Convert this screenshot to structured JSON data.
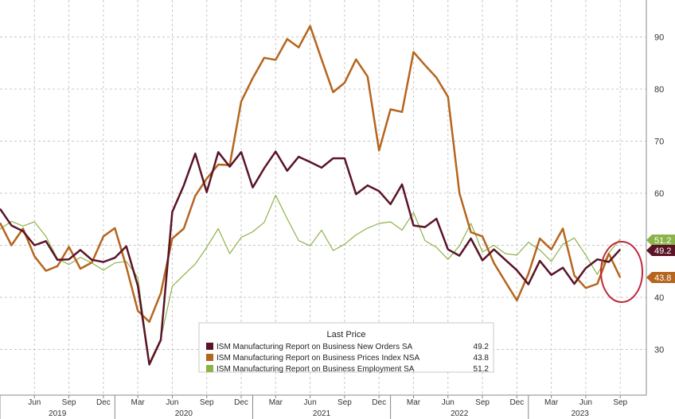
{
  "chart_data": {
    "type": "line",
    "x": [
      "2019-03",
      "2019-04",
      "2019-05",
      "2019-06",
      "2019-07",
      "2019-08",
      "2019-09",
      "2019-10",
      "2019-11",
      "2019-12",
      "2020-01",
      "2020-02",
      "2020-03",
      "2020-04",
      "2020-05",
      "2020-06",
      "2020-07",
      "2020-08",
      "2020-09",
      "2020-10",
      "2020-11",
      "2020-12",
      "2021-01",
      "2021-02",
      "2021-03",
      "2021-04",
      "2021-05",
      "2021-06",
      "2021-07",
      "2021-08",
      "2021-09",
      "2021-10",
      "2021-11",
      "2021-12",
      "2022-01",
      "2022-02",
      "2022-03",
      "2022-04",
      "2022-05",
      "2022-06",
      "2022-07",
      "2022-08",
      "2022-09",
      "2022-10",
      "2022-11",
      "2022-12",
      "2023-01",
      "2023-02",
      "2023-03",
      "2023-04",
      "2023-05",
      "2023-06",
      "2023-07",
      "2023-08",
      "2023-09"
    ],
    "series": [
      {
        "name": "ISM Manufacturing Report on Business New Orders SA",
        "color": "#5a1426",
        "values": [
          57.0,
          53.8,
          52.7,
          50.0,
          50.8,
          47.2,
          47.3,
          49.1,
          47.2,
          46.8,
          47.6,
          49.8,
          42.2,
          27.1,
          31.8,
          56.4,
          61.5,
          67.6,
          60.2,
          67.9,
          65.1,
          67.9,
          61.1,
          64.8,
          68.0,
          64.3,
          67.0,
          66.0,
          64.9,
          66.7,
          66.7,
          59.8,
          61.5,
          60.4,
          57.9,
          61.7,
          53.8,
          53.5,
          55.1,
          49.2,
          48.0,
          51.3,
          47.1,
          49.2,
          47.2,
          45.2,
          42.5,
          47.0,
          44.3,
          45.7,
          42.6,
          45.6,
          47.3,
          46.8,
          49.2
        ]
      },
      {
        "name": "ISM Manufacturing Report on Business Prices Index NSA",
        "color": "#b5651d",
        "values": [
          54.3,
          50.0,
          53.2,
          47.9,
          45.1,
          46.0,
          49.7,
          45.5,
          46.7,
          51.7,
          53.3,
          45.9,
          37.4,
          35.3,
          40.8,
          51.3,
          53.2,
          59.5,
          62.8,
          65.5,
          65.4,
          77.6,
          82.1,
          86.0,
          85.6,
          89.6,
          88.0,
          92.1,
          85.7,
          79.4,
          81.2,
          85.7,
          82.4,
          68.2,
          76.1,
          75.6,
          87.1,
          84.6,
          82.2,
          78.5,
          60.0,
          52.5,
          51.7,
          46.6,
          43.0,
          39.4,
          44.5,
          51.3,
          49.2,
          53.2,
          44.2,
          41.8,
          42.6,
          48.4,
          43.8
        ]
      },
      {
        "name": "ISM Manufacturing Report on Business Employment SA",
        "color": "#8cb34a",
        "values": [
          53.1,
          54.6,
          53.7,
          54.5,
          51.7,
          47.4,
          46.3,
          47.7,
          46.6,
          45.2,
          46.6,
          46.9,
          43.8,
          27.5,
          32.1,
          42.1,
          44.3,
          46.4,
          49.6,
          53.2,
          48.4,
          51.5,
          52.6,
          54.4,
          59.6,
          55.1,
          50.9,
          49.9,
          52.9,
          49.0,
          50.2,
          52.0,
          53.3,
          54.2,
          54.5,
          52.9,
          56.3,
          50.9,
          49.6,
          47.3,
          49.9,
          54.2,
          48.7,
          50.0,
          48.4,
          48.1,
          50.6,
          49.1,
          46.9,
          50.2,
          51.4,
          48.1,
          44.4,
          48.5,
          51.2
        ]
      }
    ],
    "yticks": [
      30,
      40,
      50,
      60,
      70,
      80,
      90
    ],
    "ylim": [
      20,
      96
    ],
    "month_labels": [
      "Jun",
      "Sep",
      "Dec",
      "Mar",
      "Jun",
      "Sep",
      "Dec",
      "Mar",
      "Jun",
      "Sep",
      "Dec",
      "Mar",
      "Jun",
      "Sep",
      "Dec",
      "Mar",
      "Jun",
      "Sep"
    ],
    "year_labels": [
      "2019",
      "2020",
      "2021",
      "2022",
      "2023"
    ],
    "legend": {
      "title": "Last Price",
      "position": "bottom-center",
      "entries": [
        {
          "label": "ISM Manufacturing Report on Business New Orders SA",
          "value": "49.2",
          "color": "#5a1426"
        },
        {
          "label": "ISM Manufacturing Report on Business Prices Index NSA",
          "value": "43.8",
          "color": "#b5651d"
        },
        {
          "label": "ISM Manufacturing Report on Business Employment SA",
          "value": "51.2",
          "color": "#8cb34a"
        }
      ]
    },
    "last_value_tags": [
      {
        "text": "51.2",
        "value": 51.2,
        "color": "#8cb34a"
      },
      {
        "text": "49.2",
        "value": 49.2,
        "color": "#5a1426"
      },
      {
        "text": "43.8",
        "value": 43.8,
        "color": "#b5651d"
      }
    ],
    "annotation": {
      "type": "circle",
      "color": "#c0283c"
    },
    "grid": true
  }
}
